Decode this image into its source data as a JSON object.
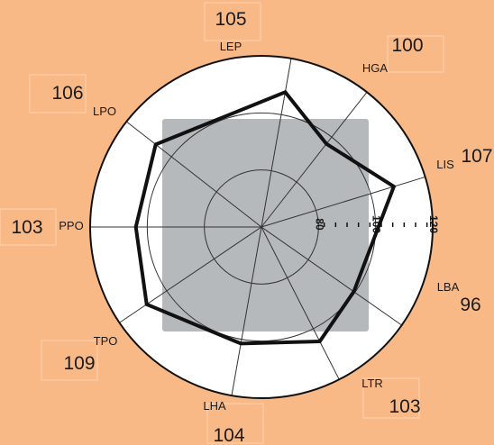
{
  "chart_data": {
    "type": "radar",
    "title": "",
    "categories": [
      "LEP",
      "HGA",
      "LIS",
      "LBA",
      "LTR",
      "LHA",
      "TPO",
      "PPO",
      "LPO"
    ],
    "values": [
      105,
      100,
      107,
      96,
      103,
      104,
      109,
      103,
      106
    ],
    "series": [
      {
        "values": [
          108,
          97,
          108.5,
          99.5,
          105,
          101.5,
          108.5,
          104,
          107
        ]
      }
    ],
    "rlim": [
      60,
      120
    ],
    "rticks": [
      "80",
      "100",
      "120"
    ],
    "grid": true,
    "shaded_box": true,
    "colors": {
      "background": "#f9b986",
      "plot_face": "#ffffff",
      "shaded_box": "#b5b9bc",
      "series_line": "#111111",
      "grid": "#333333"
    }
  }
}
